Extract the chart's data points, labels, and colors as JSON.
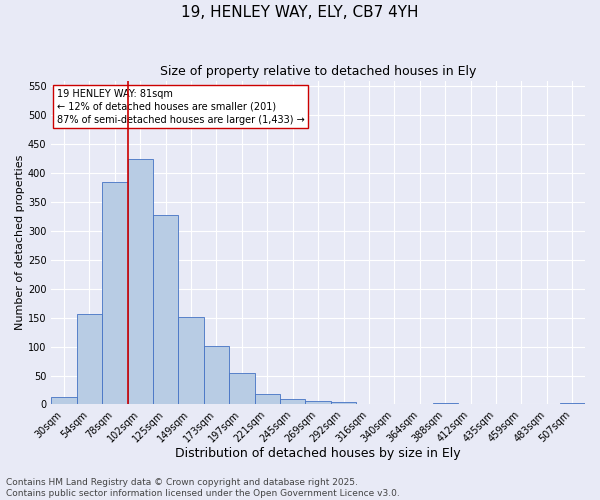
{
  "title": "19, HENLEY WAY, ELY, CB7 4YH",
  "subtitle": "Size of property relative to detached houses in Ely",
  "xlabel": "Distribution of detached houses by size in Ely",
  "ylabel": "Number of detached properties",
  "categories": [
    "30sqm",
    "54sqm",
    "78sqm",
    "102sqm",
    "125sqm",
    "149sqm",
    "173sqm",
    "197sqm",
    "221sqm",
    "245sqm",
    "269sqm",
    "292sqm",
    "316sqm",
    "340sqm",
    "364sqm",
    "388sqm",
    "412sqm",
    "435sqm",
    "459sqm",
    "483sqm",
    "507sqm"
  ],
  "values": [
    13,
    157,
    385,
    425,
    328,
    152,
    101,
    55,
    18,
    10,
    6,
    5,
    1,
    0,
    0,
    2,
    1,
    0,
    0,
    0,
    2
  ],
  "bar_color": "#b8cce4",
  "bar_edge_color": "#4472c4",
  "vline_index": 2,
  "vline_color": "#cc0000",
  "annotation_text": "19 HENLEY WAY: 81sqm\n← 12% of detached houses are smaller (201)\n87% of semi-detached houses are larger (1,433) →",
  "annotation_box_edge": "#cc0000",
  "ylim": [
    0,
    560
  ],
  "yticks": [
    0,
    50,
    100,
    150,
    200,
    250,
    300,
    350,
    400,
    450,
    500,
    550
  ],
  "background_color": "#e8eaf6",
  "grid_color": "#ffffff",
  "footer": "Contains HM Land Registry data © Crown copyright and database right 2025.\nContains public sector information licensed under the Open Government Licence v3.0.",
  "title_fontsize": 11,
  "subtitle_fontsize": 9,
  "xlabel_fontsize": 9,
  "ylabel_fontsize": 8,
  "tick_fontsize": 7,
  "footer_fontsize": 6.5
}
